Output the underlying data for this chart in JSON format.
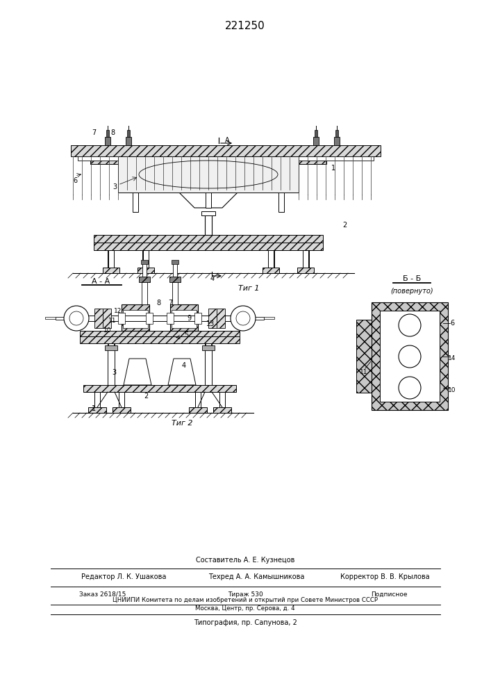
{
  "title": "221250",
  "bg": "#ffffff",
  "fig1_caption": "Τиг 1",
  "fig2_caption": "Τиг 2",
  "sec_aa": "А - А",
  "sec_bb": "Б - Б",
  "sec_bb_sub": "(повернуто)",
  "f_comp": "Составитель А. Е. Кузнецов",
  "f_editor": "Редактор Л. К. Ушакова",
  "f_tech": "Техред А. А. Камышникова",
  "f_corr": "Корректор В. В. Крылова",
  "f_order": "Заказ 2618/15",
  "f_circ": "Тираж 530",
  "f_sign": "Подписное",
  "f_org": "ЦНИИПИ Комитета по делам изобретений и открытий при Совете Министров СССР",
  "f_addr": "Москва, Центр, пр. Серова, д. 4",
  "f_print": "Типография, пр. Сапунова, 2"
}
